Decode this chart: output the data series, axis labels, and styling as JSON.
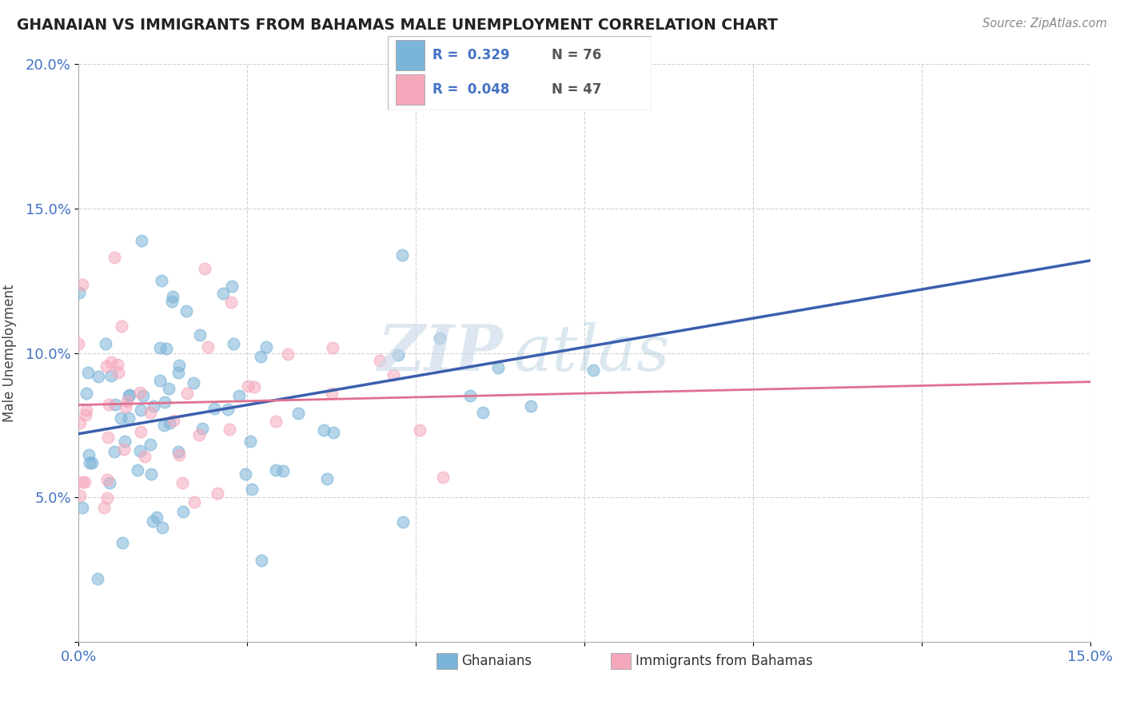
{
  "title": "GHANAIAN VS IMMIGRANTS FROM BAHAMAS MALE UNEMPLOYMENT CORRELATION CHART",
  "source_text": "Source: ZipAtlas.com",
  "ylabel": "Male Unemployment",
  "xlim": [
    0.0,
    0.15
  ],
  "ylim": [
    0.0,
    0.2
  ],
  "xtick_positions": [
    0.0,
    0.025,
    0.05,
    0.075,
    0.1,
    0.125,
    0.15
  ],
  "xtick_labels": [
    "0.0%",
    "",
    "",
    "",
    "",
    "",
    "15.0%"
  ],
  "ytick_positions": [
    0.0,
    0.05,
    0.1,
    0.15,
    0.2
  ],
  "ytick_labels": [
    "",
    "5.0%",
    "10.0%",
    "15.0%",
    "20.0%"
  ],
  "ghanaian_R": 0.329,
  "ghanaian_N": 76,
  "bahamas_R": 0.048,
  "bahamas_N": 47,
  "ghanaian_color": "#7ab4d8",
  "bahamas_color": "#f5a8bc",
  "ghanaian_line_color": "#3b5fad",
  "bahamas_line_color": "#e07090",
  "legend_R_color": "#4472c4",
  "legend_N_color": "#555555",
  "tick_color": "#4472c4",
  "title_color": "#222222",
  "source_color": "#888888",
  "ylabel_color": "#444444",
  "grid_color": "#cccccc",
  "ghanaian_line_start_y": 0.072,
  "ghanaian_line_end_y": 0.132,
  "bahamas_line_start_y": 0.082,
  "bahamas_line_end_y": 0.09
}
